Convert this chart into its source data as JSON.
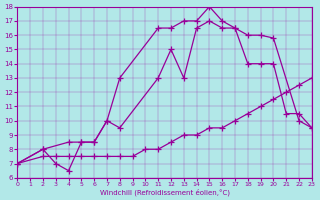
{
  "xlabel": "Windchill (Refroidissement éolien,°C)",
  "bg_color": "#b2e8e8",
  "line_color": "#990099",
  "xlim": [
    0,
    23
  ],
  "ylim": [
    6,
    18
  ],
  "xticks": [
    0,
    1,
    2,
    3,
    4,
    5,
    6,
    7,
    8,
    9,
    10,
    11,
    12,
    13,
    14,
    15,
    16,
    17,
    18,
    19,
    20,
    21,
    22,
    23
  ],
  "yticks": [
    6,
    7,
    8,
    9,
    10,
    11,
    12,
    13,
    14,
    15,
    16,
    17,
    18
  ],
  "line1_x": [
    0,
    2,
    3,
    4,
    5,
    6,
    7,
    8,
    11,
    12,
    13,
    14,
    15,
    16,
    17,
    18,
    19,
    20,
    22,
    23
  ],
  "line1_y": [
    7,
    8,
    7,
    6.5,
    8.5,
    8.5,
    10,
    13,
    16.5,
    16.5,
    17,
    17,
    18,
    17,
    16.5,
    16,
    16,
    15.8,
    10,
    9.5
  ],
  "line2_x": [
    0,
    2,
    4,
    5,
    6,
    7,
    8,
    11,
    12,
    13,
    14,
    15,
    16,
    17,
    18,
    19,
    20,
    21,
    22,
    23
  ],
  "line2_y": [
    7,
    8,
    8.5,
    8.5,
    8.5,
    10,
    9.5,
    13,
    15,
    13,
    16.5,
    17,
    16.5,
    16.5,
    14,
    14,
    14,
    10.5,
    10.5,
    9.5
  ],
  "line3_x": [
    0,
    2,
    3,
    4,
    5,
    6,
    7,
    8,
    9,
    10,
    11,
    12,
    13,
    14,
    15,
    16,
    17,
    18,
    19,
    20,
    21,
    22,
    23
  ],
  "line3_y": [
    7,
    7.5,
    7.5,
    7.5,
    7.5,
    7.5,
    7.5,
    7.5,
    7.5,
    8,
    8,
    8.5,
    9,
    9,
    9.5,
    9.5,
    10,
    10.5,
    11,
    11.5,
    12,
    12.5,
    13
  ]
}
